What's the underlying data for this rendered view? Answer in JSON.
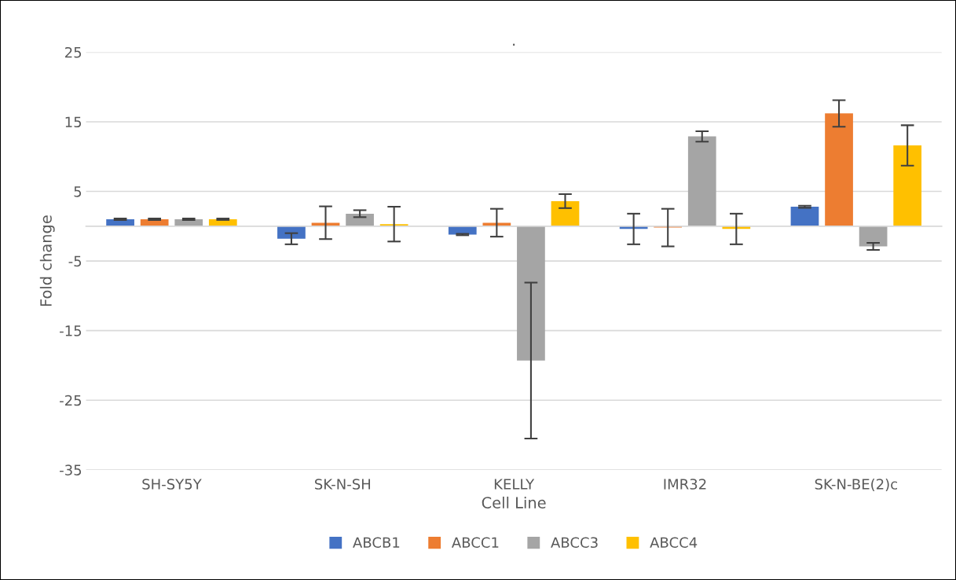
{
  "chart_data": {
    "type": "bar",
    "title": ".",
    "xlabel": "Cell Line",
    "ylabel": "Fold change",
    "categories": [
      "SH-SY5Y",
      "SK-N-SH",
      "KELLY",
      "IMR32",
      "SK-N-BE(2)c"
    ],
    "series": [
      {
        "name": "ABCB1",
        "color": "#4472c4",
        "values": [
          1.0,
          -1.8,
          -1.2,
          -0.4,
          2.8
        ],
        "errors": [
          0.1,
          0.8,
          0.1,
          2.2,
          0.15
        ]
      },
      {
        "name": "ABCC1",
        "color": "#ed7d31",
        "values": [
          1.0,
          0.5,
          0.5,
          -0.2,
          16.2
        ],
        "errors": [
          0.1,
          2.35,
          2.0,
          2.7,
          1.9
        ]
      },
      {
        "name": "ABCC3",
        "color": "#a5a5a5",
        "values": [
          1.0,
          1.8,
          -19.3,
          12.9,
          -2.9
        ],
        "errors": [
          0.1,
          0.5,
          11.2,
          0.75,
          0.5
        ]
      },
      {
        "name": "ABCC4",
        "color": "#ffc000",
        "values": [
          1.0,
          0.3,
          3.6,
          -0.4,
          11.6
        ],
        "errors": [
          0.1,
          2.5,
          1.0,
          2.2,
          2.9
        ]
      }
    ],
    "ylim": [
      -35,
      25
    ],
    "yticks": [
      -35,
      -25,
      -15,
      -5,
      5,
      15,
      25
    ],
    "grid": "y",
    "legend": "bottom"
  }
}
